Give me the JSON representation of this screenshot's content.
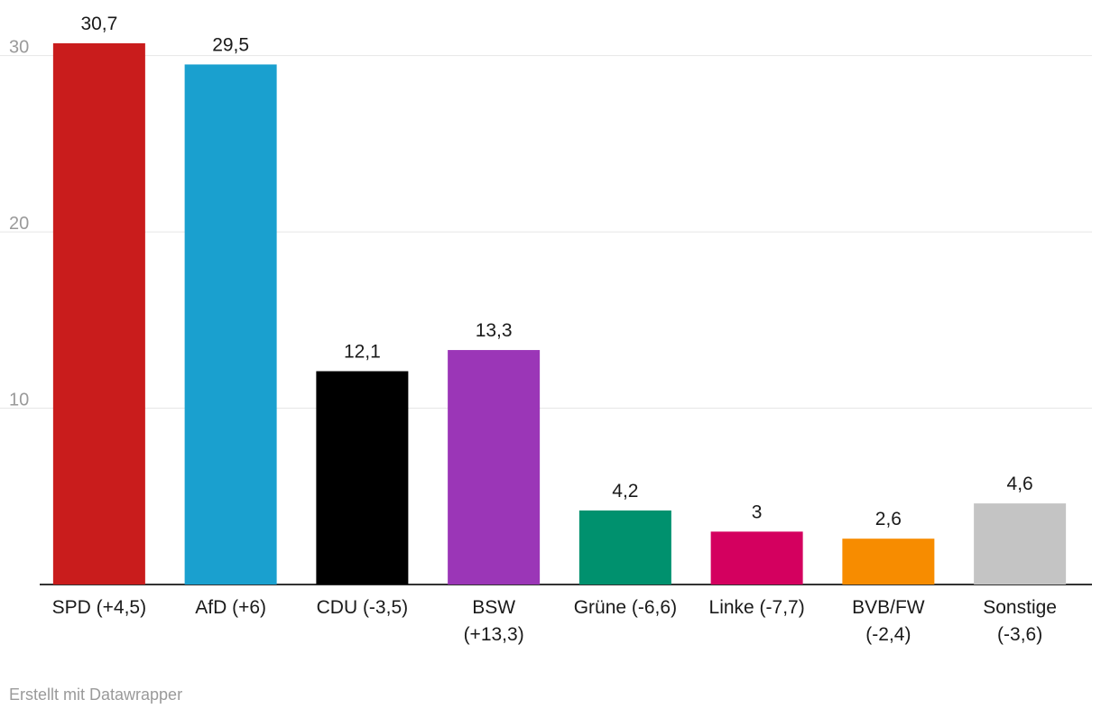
{
  "chart_data": {
    "type": "bar",
    "categories": [
      [
        "SPD (+4,5)"
      ],
      [
        "AfD (+6)"
      ],
      [
        "CDU (-3,5)"
      ],
      [
        "BSW",
        "(+13,3)"
      ],
      [
        "Grüne (-6,6)"
      ],
      [
        "Linke (-7,7)"
      ],
      [
        "BVB/FW",
        "(-2,4)"
      ],
      [
        "Sonstige",
        "(-3,6)"
      ]
    ],
    "values": [
      30.7,
      29.5,
      12.1,
      13.3,
      4.2,
      3,
      2.6,
      4.6
    ],
    "value_labels": [
      "30,7",
      "29,5",
      "12,1",
      "13,3",
      "4,2",
      "3",
      "2,6",
      "4,6"
    ],
    "colors": [
      "#c91c1c",
      "#1aa0cf",
      "#000000",
      "#9b36b7",
      "#00916e",
      "#d4005f",
      "#f78c00",
      "#c4c4c4"
    ],
    "yticks": [
      10,
      20,
      30
    ],
    "ylim": [
      0,
      30.7
    ],
    "grid": true,
    "legend": false
  },
  "footer": {
    "credit": "Erstellt mit Datawrapper"
  }
}
